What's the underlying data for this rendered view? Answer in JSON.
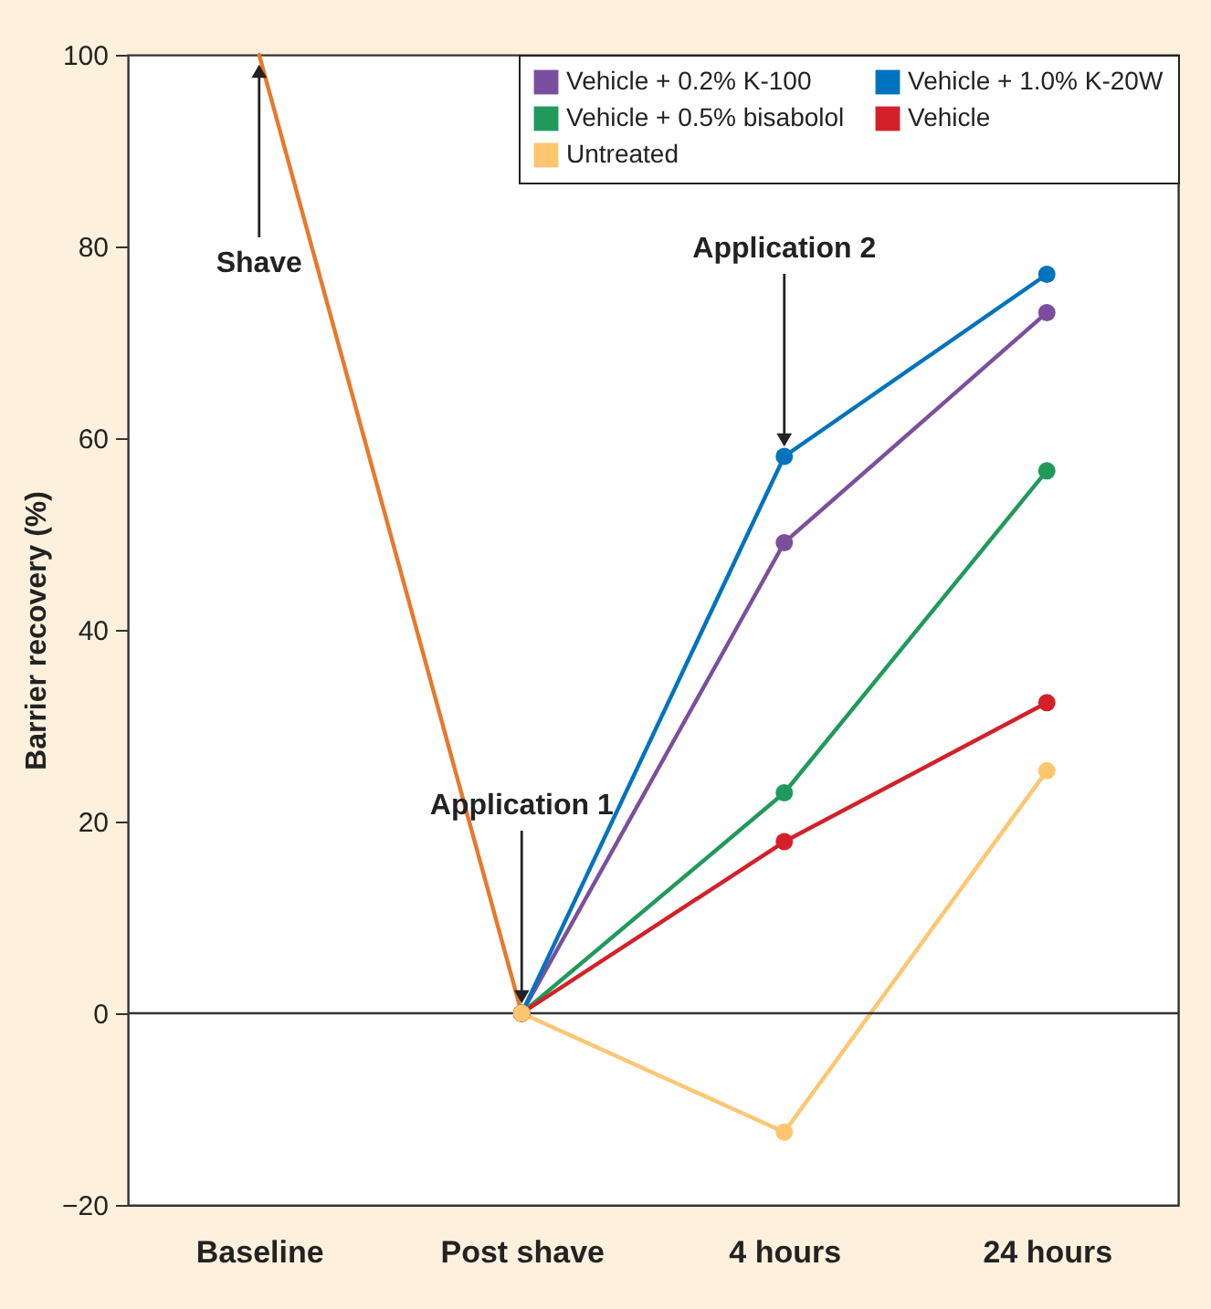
{
  "chart_data": {
    "type": "line",
    "ylabel": "Barrier recovery (%)",
    "categories": [
      "Baseline",
      "Post shave",
      "4 hours",
      "24 hours"
    ],
    "series": [
      {
        "color": "#e8792b",
        "marker": "none",
        "values": [
          100,
          0,
          null,
          null
        ]
      },
      {
        "name": "Vehicle + 0.2% K-100",
        "color": "#7b4f9d",
        "values": [
          null,
          0,
          49.1,
          73.1
        ]
      },
      {
        "name": "Vehicle + 1.0% K-20W",
        "color": "#0073bf",
        "values": [
          null,
          0,
          58.1,
          77.1
        ]
      },
      {
        "name": "Vehicle + 0.5% bisabolol",
        "color": "#1f9a5b",
        "values": [
          null,
          0,
          23.0,
          56.6
        ]
      },
      {
        "name": "Vehicle",
        "color": "#d42028",
        "values": [
          null,
          0,
          17.9,
          32.4
        ]
      },
      {
        "name": "Untreated",
        "color": "#fdc66f",
        "values": [
          null,
          0,
          -12.4,
          25.3
        ]
      }
    ],
    "ylim": [
      -20,
      100
    ],
    "yticks": [
      {
        "value": -20,
        "label": "−20"
      },
      0,
      20,
      40,
      60,
      80,
      100
    ],
    "ref_lines": [
      {
        "axis": "y",
        "value": 0
      }
    ],
    "annotations": [
      {
        "text": "Shave",
        "x": "Baseline",
        "y": 100
      },
      {
        "text": "Application 1",
        "x": "Post shave",
        "y": 0
      },
      {
        "text": "Application 2",
        "x": "4 hours",
        "y": 58.1
      }
    ],
    "marker": "circle",
    "line_style": "solid",
    "legend": "top right",
    "grid": false
  }
}
